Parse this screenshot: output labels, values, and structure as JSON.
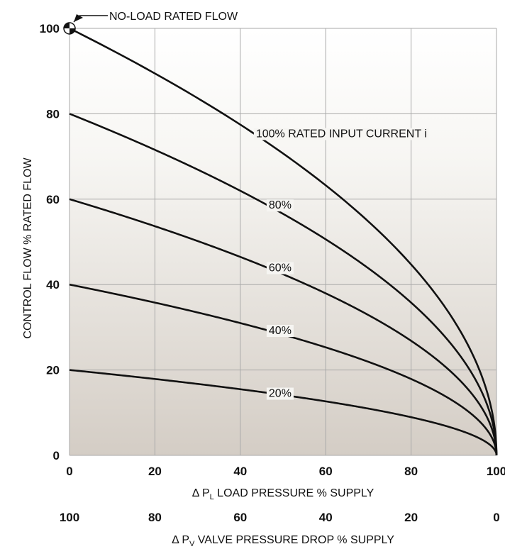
{
  "chart_data": {
    "type": "line",
    "xlabel_prefix": "Δ P",
    "xlabel_sub": "L",
    "xlabel_text": " LOAD PRESSURE % SUPPLY",
    "x2label_prefix": "Δ P",
    "x2label_sub": "V",
    "x2label_text": " VALVE PRESSURE DROP % SUPPLY",
    "ylabel": "CONTROL FLOW % RATED FLOW",
    "xlim": [
      0,
      100
    ],
    "ylim": [
      0,
      100
    ],
    "x_ticks": [
      0,
      20,
      40,
      60,
      80,
      100
    ],
    "x2_ticks": [
      100,
      80,
      60,
      40,
      20,
      0
    ],
    "y_ticks": [
      0,
      20,
      40,
      60,
      80,
      100
    ],
    "grid": true,
    "annotation": "NO-LOAD RATED FLOW",
    "series": [
      {
        "name": "100% RATED INPUT CURRENT i",
        "current": 100,
        "label_x": 43
      },
      {
        "name": "80%",
        "current": 80,
        "label_x": 46
      },
      {
        "name": "60%",
        "current": 60,
        "label_x": 46
      },
      {
        "name": "40%",
        "current": 40,
        "label_x": 46
      },
      {
        "name": "20%",
        "current": 20,
        "label_x": 46
      }
    ],
    "relation": "flow = current × sqrt(1 − load pressure / 100)"
  }
}
